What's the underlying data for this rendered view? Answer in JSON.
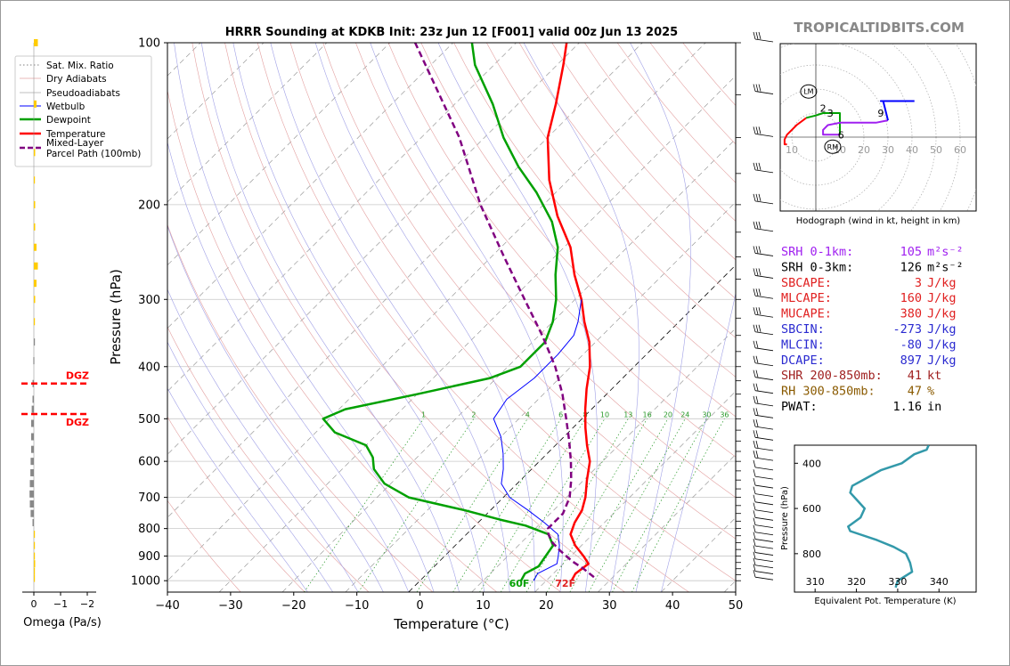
{
  "title": "HRRR Sounding at KDKB Init: 23z Jun 12 [F001] valid 00z Jun 13 2025",
  "brand": "TROPICALTIDBITS.COM",
  "chart_data": [
    {
      "type": "line",
      "name": "skew-t",
      "xlabel": "Temperature (°C)",
      "ylabel": "Pressure (hPa)",
      "xlim": [
        -40,
        50
      ],
      "ylim": [
        1050,
        100
      ],
      "log_y": true,
      "skew": true,
      "x_ticks": [
        -40,
        -30,
        -20,
        -10,
        0,
        10,
        20,
        30,
        40,
        50
      ],
      "y_ticks": [
        100,
        200,
        300,
        400,
        500,
        600,
        700,
        800,
        900,
        1000
      ],
      "legend": [
        "Sat. Mix. Ratio",
        "Dry Adiabats",
        "Pseudoadiabats",
        "Wetbulb",
        "Dewpoint",
        "Temperature",
        "Mixed-Layer\nParcel Path (100mb)"
      ],
      "legend_position": "upper-left",
      "mixing_ratio_labels": [
        "1",
        "2",
        "4",
        "6",
        "8",
        "10",
        "13",
        "16",
        "20",
        "24",
        "30",
        "36"
      ],
      "surface_dewpoint_label": "60F",
      "surface_temperature_label": "72F",
      "series": [
        {
          "name": "Temperature",
          "color": "#ff0000",
          "points": [
            [
              1000,
              24
            ],
            [
              970,
              23.5
            ],
            [
              930,
              24
            ],
            [
              900,
              22
            ],
            [
              860,
              19
            ],
            [
              820,
              16.5
            ],
            [
              780,
              15.3
            ],
            [
              740,
              14.5
            ],
            [
              700,
              13
            ],
            [
              650,
              10.5
            ],
            [
              600,
              8
            ],
            [
              560,
              5
            ],
            [
              520,
              2
            ],
            [
              480,
              -1
            ],
            [
              440,
              -4
            ],
            [
              400,
              -7
            ],
            [
              360,
              -11
            ],
            [
              330,
              -15
            ],
            [
              300,
              -19
            ],
            [
              270,
              -24
            ],
            [
              240,
              -29
            ],
            [
              210,
              -36
            ],
            [
              180,
              -43
            ],
            [
              150,
              -50
            ],
            [
              130,
              -54
            ],
            [
              110,
              -59
            ],
            [
              100,
              -62
            ]
          ]
        },
        {
          "name": "Dewpoint",
          "color": "#00a000",
          "points": [
            [
              1000,
              16
            ],
            [
              970,
              15.5
            ],
            [
              940,
              16.5
            ],
            [
              900,
              16
            ],
            [
              860,
              15.5
            ],
            [
              820,
              13
            ],
            [
              790,
              8
            ],
            [
              770,
              3
            ],
            [
              740,
              -4
            ],
            [
              700,
              -15
            ],
            [
              660,
              -21
            ],
            [
              620,
              -25
            ],
            [
              590,
              -27
            ],
            [
              560,
              -30
            ],
            [
              530,
              -37
            ],
            [
              500,
              -41
            ],
            [
              480,
              -39
            ],
            [
              450,
              -30
            ],
            [
              420,
              -21
            ],
            [
              400,
              -18
            ],
            [
              360,
              -18
            ],
            [
              330,
              -20
            ],
            [
              300,
              -23
            ],
            [
              270,
              -27
            ],
            [
              240,
              -31
            ],
            [
              215,
              -36
            ],
            [
              190,
              -43
            ],
            [
              170,
              -50
            ],
            [
              150,
              -57
            ],
            [
              130,
              -64
            ],
            [
              110,
              -73
            ],
            [
              100,
              -77
            ]
          ]
        },
        {
          "name": "Wetbulb",
          "color": "#0000ff",
          "points": [
            [
              1000,
              18
            ],
            [
              970,
              17.5
            ],
            [
              930,
              19
            ],
            [
              900,
              18
            ],
            [
              860,
              16.5
            ],
            [
              820,
              14.5
            ],
            [
              780,
              10.5
            ],
            [
              740,
              6
            ],
            [
              700,
              1
            ],
            [
              660,
              -2.5
            ],
            [
              620,
              -4.5
            ],
            [
              580,
              -7
            ],
            [
              540,
              -10
            ],
            [
              500,
              -14
            ],
            [
              460,
              -15
            ],
            [
              420,
              -14
            ],
            [
              380,
              -14
            ],
            [
              350,
              -14.5
            ],
            [
              330,
              -16
            ],
            [
              300,
              -19
            ]
          ]
        },
        {
          "name": "Mixed-Layer Parcel Path (100mb)",
          "color": "#800080",
          "points": [
            [
              985,
              27
            ],
            [
              950,
              24
            ],
            [
              920,
              21
            ],
            [
              880,
              17.5
            ],
            [
              850,
              15
            ],
            [
              820,
              13
            ],
            [
              800,
              12
            ],
            [
              750,
              12
            ],
            [
              700,
              10.5
            ],
            [
              650,
              8
            ],
            [
              600,
              5
            ],
            [
              550,
              1.5
            ],
            [
              500,
              -2.5
            ],
            [
              450,
              -7
            ],
            [
              400,
              -12.5
            ],
            [
              350,
              -19.5
            ],
            [
              300,
              -28
            ],
            [
              250,
              -38
            ],
            [
              200,
              -50
            ],
            [
              150,
              -64
            ],
            [
              100,
              -86
            ]
          ]
        }
      ]
    },
    {
      "type": "bar",
      "name": "omega",
      "xlabel": "Omega (Pa/s)",
      "x_ticks": [
        "0",
        "−1",
        "−2"
      ],
      "xlim": [
        0.3,
        -2.3
      ],
      "dgz_label": "DGZ",
      "dgz_pressures": [
        430,
        490
      ],
      "bars": [
        [
          100,
          -0.15
        ],
        [
          130,
          -0.1
        ],
        [
          160,
          -0.05
        ],
        [
          180,
          -0.03
        ],
        [
          200,
          -0.05
        ],
        [
          220,
          -0.05
        ],
        [
          240,
          -0.1
        ],
        [
          260,
          -0.15
        ],
        [
          280,
          -0.1
        ],
        [
          300,
          -0.05
        ],
        [
          330,
          -0.02
        ],
        [
          360,
          0
        ],
        [
          390,
          0.02
        ],
        [
          430,
          0.05
        ],
        [
          460,
          0.05
        ],
        [
          480,
          0.08
        ],
        [
          510,
          0.1
        ],
        [
          540,
          0.1
        ],
        [
          570,
          0.1
        ],
        [
          600,
          0.12
        ],
        [
          630,
          0.13
        ],
        [
          660,
          0.15
        ],
        [
          690,
          0.16
        ],
        [
          720,
          0.15
        ],
        [
          750,
          0.12
        ],
        [
          780,
          0.05
        ],
        [
          820,
          -0.02
        ],
        [
          860,
          -0.03
        ],
        [
          900,
          -0.03
        ],
        [
          930,
          -0.05
        ],
        [
          960,
          -0.02
        ],
        [
          990,
          -0.01
        ]
      ]
    },
    {
      "type": "line",
      "name": "hodograph",
      "xlabel": "Hodograph (wind in kt, height in km)",
      "ring_labels": [
        "10",
        "10",
        "20",
        "30",
        "40",
        "50",
        "60"
      ],
      "storm_motion_labels": [
        "LM",
        "RM"
      ],
      "height_labels": [
        "2",
        "3",
        "6",
        "9"
      ],
      "series": [
        {
          "name": "0-1km",
          "color": "#ff0000",
          "points": [
            [
              -12,
              -3
            ],
            [
              -13,
              -3
            ],
            [
              -13,
              -1
            ],
            [
              -12,
              1
            ],
            [
              -8,
              5
            ],
            [
              -4,
              8
            ]
          ]
        },
        {
          "name": "1-3km",
          "color": "#00a000",
          "points": [
            [
              -4,
              8
            ],
            [
              0,
              9
            ],
            [
              3,
              10
            ],
            [
              10,
              10
            ],
            [
              10,
              5
            ],
            [
              10,
              1
            ]
          ]
        },
        {
          "name": "3-6km",
          "color": "#a020f0",
          "points": [
            [
              10,
              1
            ],
            [
              3,
              1
            ],
            [
              3,
              3
            ],
            [
              5,
              5
            ],
            [
              10,
              6
            ],
            [
              25,
              6
            ],
            [
              30,
              7
            ]
          ]
        },
        {
          "name": "6-9km",
          "color": "#0000ff",
          "points": [
            [
              30,
              7
            ],
            [
              28,
              15
            ],
            [
              27,
              15
            ],
            [
              35,
              15
            ],
            [
              41,
              15
            ]
          ]
        }
      ],
      "lm": [
        -3,
        19
      ],
      "rm": [
        7,
        -4
      ]
    },
    {
      "type": "line",
      "name": "theta-e",
      "xlabel": "Equivalent Pot. Temperature (K)",
      "ylabel": "Pressure (hPa)",
      "x_ticks": [
        310,
        320,
        330,
        340
      ],
      "y_ticks": [
        400,
        600,
        800
      ],
      "xlim": [
        305,
        349
      ],
      "ylim": [
        970,
        320
      ],
      "color": "#3399aa",
      "points": [
        [
          320,
          337.5
        ],
        [
          340,
          337
        ],
        [
          360,
          334
        ],
        [
          400,
          331
        ],
        [
          430,
          326
        ],
        [
          470,
          322
        ],
        [
          500,
          319
        ],
        [
          530,
          318.5
        ],
        [
          560,
          320
        ],
        [
          600,
          322
        ],
        [
          640,
          321
        ],
        [
          680,
          318
        ],
        [
          700,
          318.5
        ],
        [
          740,
          325
        ],
        [
          770,
          329
        ],
        [
          800,
          332
        ],
        [
          840,
          333
        ],
        [
          880,
          333.5
        ],
        [
          920,
          330
        ],
        [
          950,
          329.5
        ]
      ]
    }
  ],
  "parameters": [
    {
      "label": "SRH 0-1km:",
      "value": "105",
      "unit": "m²s⁻²",
      "color": "#a020f0"
    },
    {
      "label": "SRH 0-3km:",
      "value": "126",
      "unit": "m²s⁻²",
      "color": "#000000"
    },
    {
      "label": "SBCAPE:",
      "value": "3",
      "unit": "J/kg",
      "color": "#e02020"
    },
    {
      "label": "MLCAPE:",
      "value": "160",
      "unit": "J/kg",
      "color": "#e02020"
    },
    {
      "label": "MUCAPE:",
      "value": "380",
      "unit": "J/kg",
      "color": "#e02020"
    },
    {
      "label": "SBCIN:",
      "value": "-273",
      "unit": "J/kg",
      "color": "#2a2ad0"
    },
    {
      "label": "MLCIN:",
      "value": "-80",
      "unit": "J/kg",
      "color": "#2a2ad0"
    },
    {
      "label": "DCAPE:",
      "value": "897",
      "unit": "J/kg",
      "color": "#2a2ad0"
    },
    {
      "label": "SHR 200-850mb:",
      "value": "41",
      "unit": "kt",
      "color": "#a02020"
    },
    {
      "label": "RH 300-850mb:",
      "value": "47",
      "unit": "%",
      "color": "#8a5a00"
    },
    {
      "label": "PWAT:",
      "value": "1.16",
      "unit": "in",
      "color": "#000000"
    }
  ]
}
